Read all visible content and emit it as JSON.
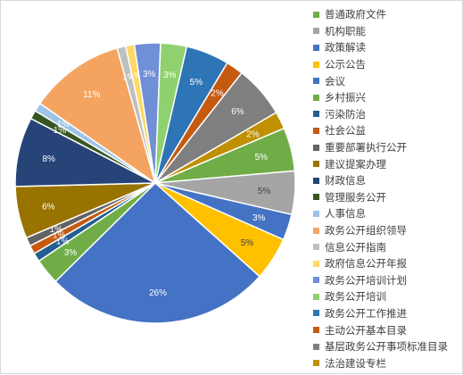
{
  "chart_data": {
    "type": "pie",
    "title": "",
    "legend_position": "right",
    "categories": [
      "普通政府文件",
      "机构职能",
      "政策解读",
      "公示公告",
      "会议",
      "乡村振兴",
      "污染防治",
      "社会公益",
      "重要部署执行公开",
      "建议提案办理",
      "财政信息",
      "管理服务公开",
      "人事信息",
      "政务公开组织领导",
      "信息公开指南",
      "政府信息公开年报",
      "政务公开培训计划",
      "政务公开培训",
      "政务公开工作推进",
      "主动公开基本目录",
      "基层政务公开事项标准目录",
      "法治建设专栏"
    ],
    "slices": [
      {
        "label": "政务公开工作推进",
        "value": 5,
        "color": "#2e75b6"
      },
      {
        "label": "主动公开基本目录",
        "value": 2,
        "color": "#c55a11"
      },
      {
        "label": "基层政务公开事项标准目录",
        "value": 6,
        "color": "#7f7f7f"
      },
      {
        "label": "法治建设专栏",
        "value": 2,
        "color": "#bf9000"
      },
      {
        "label": "普通政府文件",
        "value": 5,
        "color": "#70ad47"
      },
      {
        "label": "机构职能",
        "value": 5,
        "color": "#a5a5a5"
      },
      {
        "label": "政策解读",
        "value": 3,
        "color": "#4472c4"
      },
      {
        "label": "公示公告",
        "value": 5,
        "color": "#ffc000"
      },
      {
        "label": "会议",
        "value": 26,
        "color": "#4472c4"
      },
      {
        "label": "乡村振兴",
        "value": 3,
        "color": "#70ad47"
      },
      {
        "label": "污染防治",
        "value": 1,
        "color": "#255e91"
      },
      {
        "label": "社会公益",
        "value": 1,
        "color": "#c55a11"
      },
      {
        "label": "重要部署执行公开",
        "value": 1,
        "color": "#636363"
      },
      {
        "label": "建议提案办理",
        "value": 6,
        "color": "#997300"
      },
      {
        "label": "财政信息",
        "value": 8,
        "color": "#264478"
      },
      {
        "label": "管理服务公开",
        "value": 1,
        "color": "#375623"
      },
      {
        "label": "人事信息",
        "value": 1,
        "color": "#9dc3e6"
      },
      {
        "label": "政务公开组织领导",
        "value": 11,
        "color": "#f4a460"
      },
      {
        "label": "信息公开指南",
        "value": 1,
        "color": "#bfbfbf"
      },
      {
        "label": "政府信息公开年报",
        "value": 1,
        "color": "#ffd966"
      },
      {
        "label": "政务公开培训计划",
        "value": 3,
        "color": "#6f8fd6"
      },
      {
        "label": "政务公开培训",
        "value": 3,
        "color": "#8fd16f"
      }
    ],
    "legend_colors": [
      "#70ad47",
      "#a5a5a5",
      "#4472c4",
      "#ffc000",
      "#4472c4",
      "#70ad47",
      "#255e91",
      "#c55a11",
      "#636363",
      "#997300",
      "#264478",
      "#375623",
      "#9dc3e6",
      "#f4a460",
      "#bfbfbf",
      "#ffd966",
      "#6f8fd6",
      "#8fd16f",
      "#2e75b6",
      "#c55a11",
      "#7f7f7f",
      "#bf9000"
    ],
    "dark_label_slices": [
      "机构职能",
      "公示公告"
    ],
    "value_suffix": "%"
  }
}
